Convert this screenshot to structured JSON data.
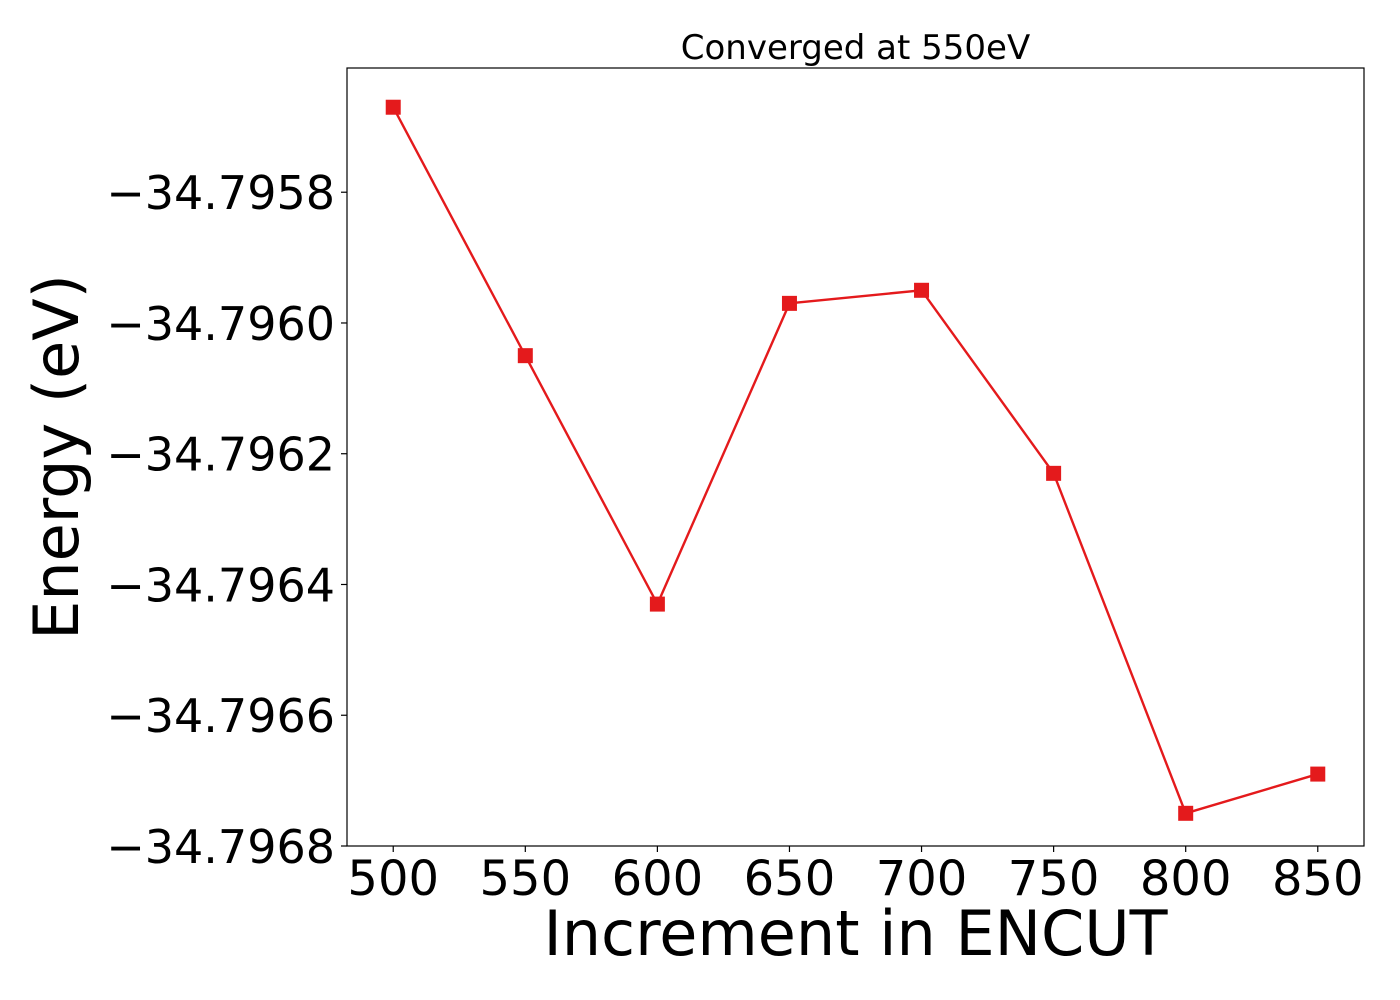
{
  "chart_data": {
    "type": "line",
    "title": "Converged at 550eV",
    "xlabel": "Increment in ENCUT",
    "ylabel": "Energy (eV)",
    "x": [
      500,
      550,
      600,
      650,
      700,
      750,
      800,
      850
    ],
    "series": [
      {
        "values": [
          -34.79567,
          -34.79605,
          -34.79643,
          -34.79597,
          -34.79595,
          -34.79623,
          -34.79675,
          -34.79669
        ],
        "color": "#e41a1c",
        "marker": "square"
      }
    ],
    "xlim": [
      482.5,
      867.5
    ],
    "ylim": [
      -34.7968,
      -34.79561
    ],
    "xticks": [
      500,
      550,
      600,
      650,
      700,
      750,
      800,
      850
    ],
    "xtick_labels": [
      "500",
      "550",
      "600",
      "650",
      "700",
      "750",
      "800",
      "850"
    ],
    "yticks": [
      -34.7958,
      -34.796,
      -34.7962,
      -34.7964,
      -34.7966,
      -34.7968
    ],
    "ytick_labels": [
      "−34.7958",
      "−34.7960",
      "−34.7962",
      "−34.7964",
      "−34.7966",
      "−34.7968"
    ],
    "grid": false,
    "legend": false
  }
}
